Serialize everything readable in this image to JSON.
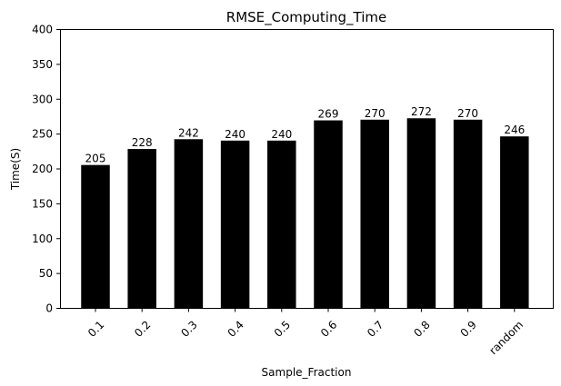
{
  "chart_data": {
    "type": "bar",
    "title": "RMSE_Computing_Time",
    "xlabel": "Sample_Fraction",
    "ylabel": "Time(S)",
    "categories": [
      "0.1",
      "0.2",
      "0.3",
      "0.4",
      "0.5",
      "0.6",
      "0.7",
      "0.8",
      "0.9",
      "random"
    ],
    "values": [
      205,
      228,
      242,
      240,
      240,
      269,
      270,
      272,
      270,
      246
    ],
    "data_labels": [
      "205",
      "228",
      "242",
      "240",
      "240",
      "269",
      "270",
      "272",
      "270",
      "246"
    ],
    "ylim": [
      0,
      400
    ],
    "yticks": [
      0,
      50,
      100,
      150,
      200,
      250,
      300,
      350,
      400
    ],
    "ytick_labels": [
      "0",
      "50",
      "100",
      "150",
      "200",
      "250",
      "300",
      "350",
      "400"
    ],
    "bar_color": "#000000",
    "grid": false,
    "legend": "none",
    "xtick_rotation": "45"
  }
}
